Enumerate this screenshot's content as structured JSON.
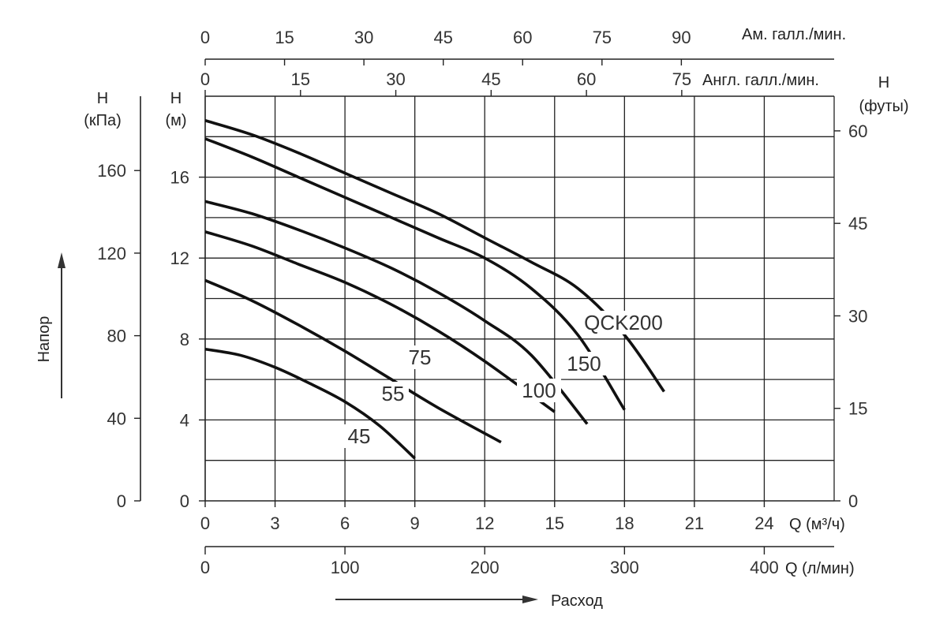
{
  "chart_data": {
    "type": "line",
    "title": "",
    "x": {
      "label": "Q (м³/ч)",
      "range": [
        0,
        27
      ],
      "ticks": [
        0,
        3,
        6,
        9,
        12,
        15,
        18,
        21,
        24
      ]
    },
    "y": {
      "label_line1": "H",
      "label_line2": "(м)",
      "range": [
        0,
        20
      ],
      "ticks": [
        0,
        4,
        8,
        12,
        16
      ],
      "grid_step": 2
    },
    "y_kpa": {
      "label_line1": "H",
      "label_line2": "(кПа)",
      "ticks": [
        0,
        40,
        80,
        120,
        160
      ]
    },
    "y_ft": {
      "label_line1": "H",
      "label_line2": "(футы)",
      "ticks": [
        0,
        15,
        30,
        45,
        60
      ]
    },
    "x_lpm": {
      "label": "Q (л/мин)",
      "ticks": [
        0,
        100,
        200,
        300,
        400
      ]
    },
    "x_usgpm": {
      "label": "Ам. галл./мин.",
      "ticks": [
        0,
        15,
        30,
        45,
        60,
        75,
        90
      ]
    },
    "x_ukgpm": {
      "label": "Англ. галл./мин.",
      "ticks": [
        0,
        15,
        30,
        45,
        60,
        75
      ]
    },
    "head_axis_label": "Напор",
    "flow_axis_label": "Расход",
    "grid": true,
    "series": [
      {
        "name": "45",
        "x": [
          0,
          1.5,
          3,
          4.5,
          6,
          7.5,
          9
        ],
        "y": [
          7.5,
          7.2,
          6.6,
          5.8,
          4.9,
          3.7,
          2.1
        ]
      },
      {
        "name": "55",
        "x": [
          0,
          2,
          4,
          6,
          8,
          10,
          12.7
        ],
        "y": [
          10.9,
          9.9,
          8.7,
          7.4,
          6.0,
          4.6,
          2.9
        ]
      },
      {
        "name": "75",
        "x": [
          0,
          2,
          4,
          6,
          8,
          10,
          12,
          15
        ],
        "y": [
          13.3,
          12.6,
          11.7,
          10.8,
          9.7,
          8.4,
          6.9,
          4.4
        ]
      },
      {
        "name": "100",
        "x": [
          0,
          2,
          4,
          6,
          8,
          10,
          12,
          14,
          16.4
        ],
        "y": [
          14.8,
          14.2,
          13.4,
          12.5,
          11.5,
          10.3,
          8.9,
          7.2,
          3.8
        ]
      },
      {
        "name": "150",
        "x": [
          0,
          2,
          4,
          6,
          8,
          10,
          12,
          14,
          16,
          18
        ],
        "y": [
          17.9,
          17.0,
          16.0,
          15.0,
          14.0,
          13.0,
          12.0,
          10.5,
          8.2,
          4.5
        ]
      },
      {
        "name": "QCK200",
        "x": [
          0,
          2,
          4,
          6,
          8,
          10,
          12,
          14,
          16,
          18,
          19.7
        ],
        "y": [
          18.8,
          18.1,
          17.2,
          16.2,
          15.2,
          14.2,
          13.0,
          11.8,
          10.5,
          8.2,
          5.4
        ]
      }
    ],
    "legend": "none"
  }
}
